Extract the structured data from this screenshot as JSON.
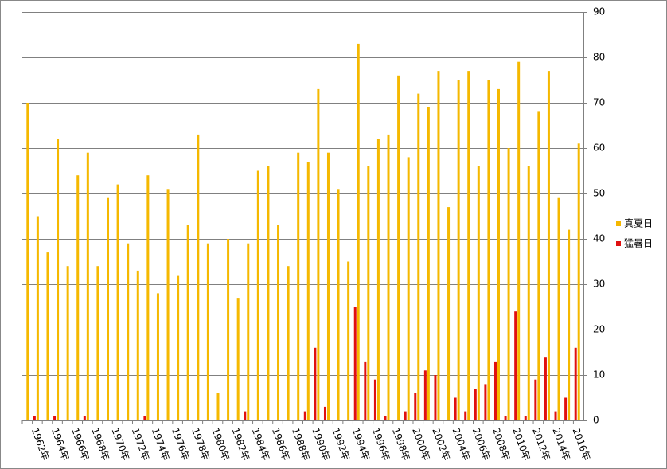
{
  "chart_data": {
    "type": "bar",
    "categories": [
      null,
      "1962年",
      null,
      "1964年",
      null,
      "1966年",
      null,
      "1968年",
      null,
      "1970年",
      null,
      "1972年",
      null,
      "1974年",
      null,
      "1976年",
      null,
      "1978年",
      null,
      "1980年",
      null,
      "1982年",
      null,
      "1984年",
      null,
      "1986年",
      null,
      "1988年",
      null,
      "1990年",
      null,
      "1992年",
      null,
      "1994年",
      null,
      "1996年",
      null,
      "1998年",
      null,
      "2000年",
      null,
      "2002年",
      null,
      "2004年",
      null,
      "2006年",
      null,
      "2008年",
      null,
      "2010年",
      null,
      "2012年",
      null,
      "2014年",
      null,
      "2016年"
    ],
    "series": [
      {
        "name": "真夏日",
        "color": "#f5b800",
        "values": [
          70,
          45,
          37,
          62,
          34,
          54,
          59,
          34,
          49,
          52,
          39,
          33,
          54,
          28,
          51,
          32,
          43,
          63,
          39,
          6,
          40,
          27,
          39,
          55,
          56,
          43,
          34,
          59,
          57,
          73,
          59,
          51,
          35,
          83,
          56,
          62,
          63,
          76,
          58,
          72,
          69,
          77,
          47,
          75,
          77,
          56,
          75,
          73,
          60,
          79,
          56,
          68,
          77,
          49,
          42,
          61
        ]
      },
      {
        "name": "猛暑日",
        "color": "#e01010",
        "values": [
          0,
          1,
          0,
          1,
          0,
          0,
          1,
          0,
          0,
          0,
          0,
          0,
          1,
          0,
          0,
          0,
          0,
          0,
          0,
          0,
          0,
          0,
          2,
          0,
          0,
          0,
          0,
          0,
          2,
          16,
          3,
          0,
          0,
          25,
          13,
          9,
          1,
          0,
          2,
          6,
          11,
          10,
          0,
          5,
          2,
          7,
          8,
          13,
          1,
          24,
          1,
          9,
          14,
          2,
          5,
          16
        ]
      }
    ],
    "ylim": [
      0,
      90
    ],
    "yticks": [
      0,
      10,
      20,
      30,
      40,
      50,
      60,
      70,
      80,
      90
    ],
    "grid": true,
    "legend": "right"
  }
}
